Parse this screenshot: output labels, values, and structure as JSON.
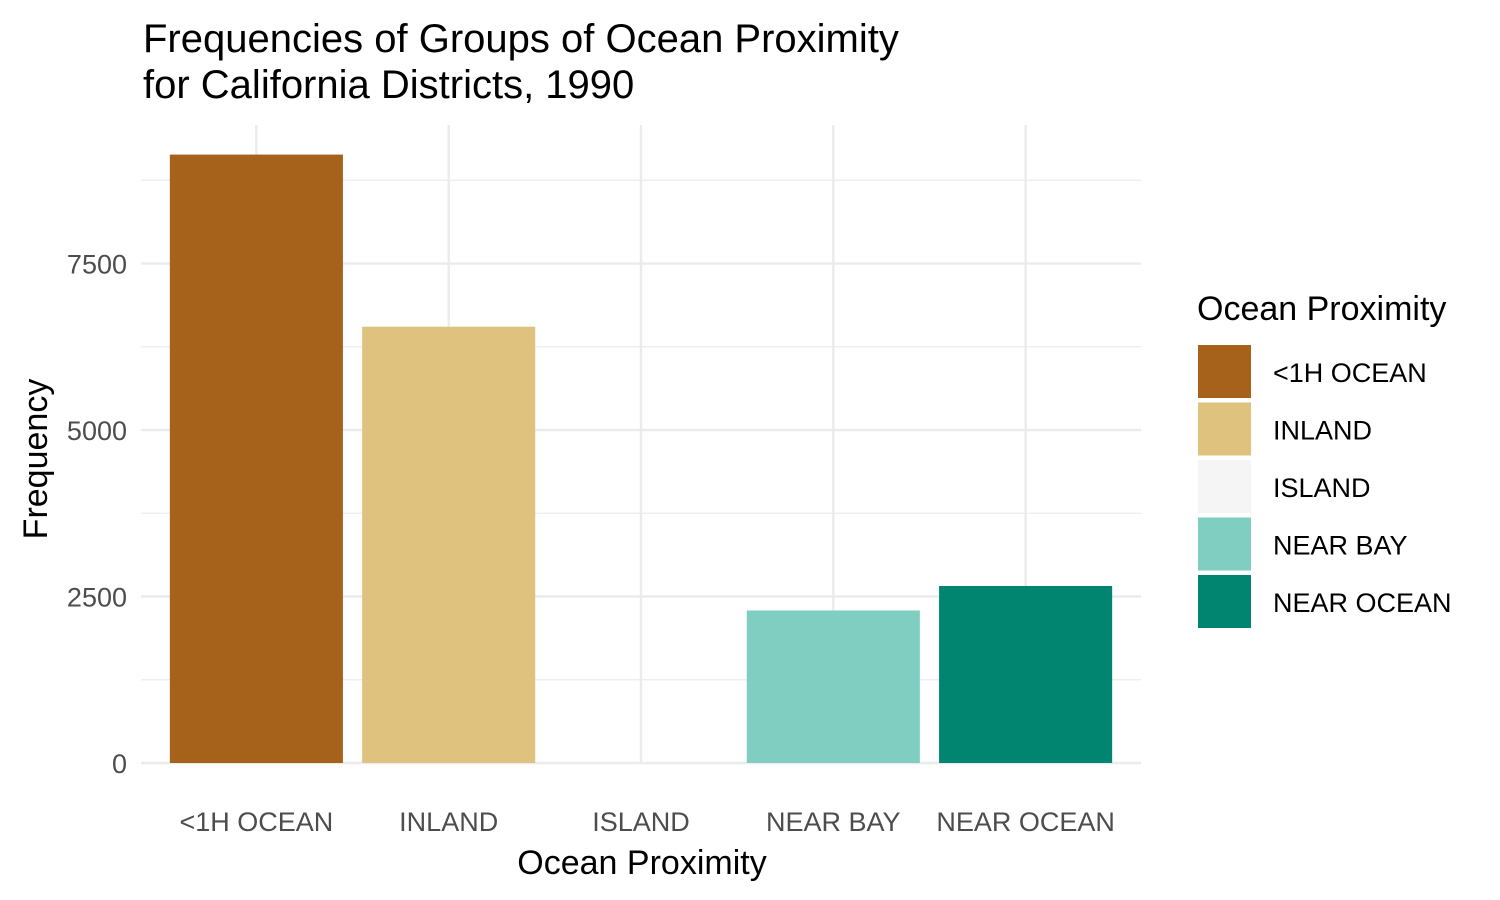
{
  "chart_data": {
    "type": "bar",
    "title_lines": [
      "Frequencies of Groups of Ocean Proximity",
      "for California Districts, 1990"
    ],
    "xlabel": "Ocean Proximity",
    "ylabel": "Frequency",
    "categories": [
      "<1H OCEAN",
      "INLAND",
      "ISLAND",
      "NEAR BAY",
      "NEAR OCEAN"
    ],
    "values": [
      9136,
      6551,
      5,
      2290,
      2658
    ],
    "colors": [
      "#a6611a",
      "#dfc27d",
      "#f5f5f5",
      "#80cdc1",
      "#018571"
    ],
    "ylim": [
      0,
      9580
    ],
    "yticks": [
      0,
      2500,
      5000,
      7500
    ],
    "ytick_labels": [
      "0",
      "2500",
      "5000",
      "7500"
    ],
    "grid": true,
    "legend": {
      "title": "Ocean Proximity",
      "placement": "right",
      "entries": [
        "<1H OCEAN",
        "INLAND",
        "ISLAND",
        "NEAR BAY",
        "NEAR OCEAN"
      ]
    }
  }
}
